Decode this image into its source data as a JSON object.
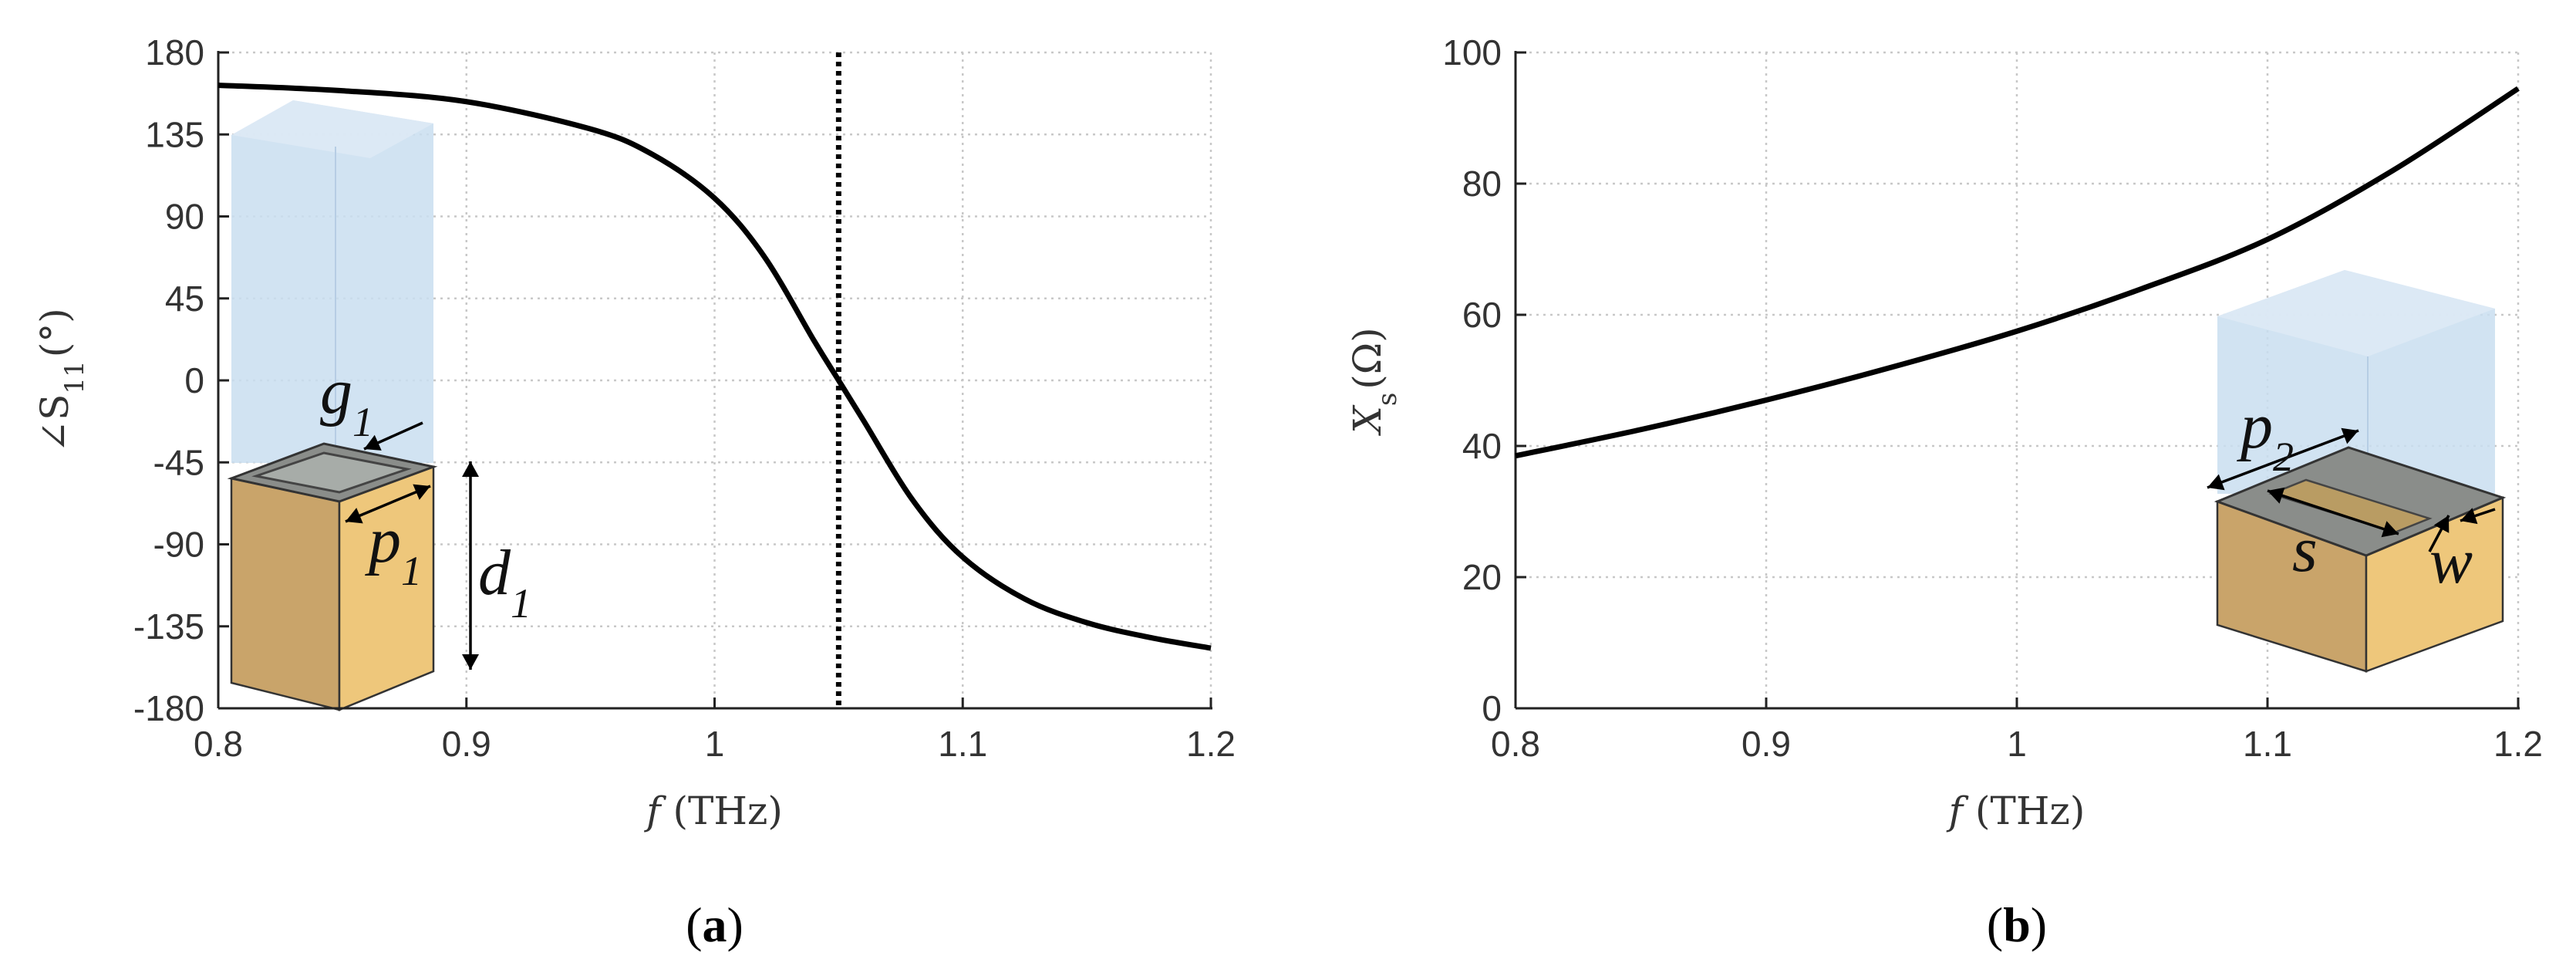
{
  "chart_data": [
    {
      "type": "line",
      "panel_label": "a",
      "xlabel": {
        "var": "f",
        "unit": "(THz)"
      },
      "ylabel": {
        "symbol": "∠S",
        "sub": "11",
        "unit": "(°)"
      },
      "xlim": [
        0.8,
        1.2
      ],
      "ylim": [
        -180,
        180
      ],
      "xticks": [
        0.8,
        0.9,
        1,
        1.1,
        1.2
      ],
      "xtick_labels": [
        "0.8",
        "0.9",
        "1",
        "1.1",
        "1.2"
      ],
      "yticks": [
        180,
        135,
        90,
        45,
        0,
        -45,
        -90,
        -135,
        -180
      ],
      "ytick_labels": [
        "180",
        "135",
        "90",
        "45",
        "0",
        "-45",
        "-90",
        "-135",
        "-180"
      ],
      "grid": true,
      "marker_line": {
        "x": 1.05,
        "style": "dotted"
      },
      "series": [
        {
          "color": "#000000",
          "x": [
            0.8,
            0.85,
            0.9,
            0.95,
            0.975,
            1.0,
            1.02,
            1.04,
            1.05,
            1.06,
            1.08,
            1.1,
            1.125,
            1.15,
            1.175,
            1.2
          ],
          "y": [
            162,
            159,
            153,
            138,
            124,
            100,
            68,
            22,
            0,
            -22,
            -66,
            -97,
            -120,
            -133,
            -141,
            -147
          ]
        }
      ],
      "inset": {
        "labels": [
          "g",
          "p",
          "d"
        ],
        "subscripts": [
          "1",
          "1",
          "1"
        ]
      }
    },
    {
      "type": "line",
      "panel_label": "b",
      "xlabel": {
        "var": "f",
        "unit": "(THz)"
      },
      "ylabel": {
        "symbol": "X",
        "sub": "s",
        "unit": "(Ω)"
      },
      "xlim": [
        0.8,
        1.2
      ],
      "ylim": [
        0,
        100
      ],
      "xticks": [
        0.8,
        0.9,
        1,
        1.1,
        1.2
      ],
      "xtick_labels": [
        "0.8",
        "0.9",
        "1",
        "1.1",
        "1.2"
      ],
      "yticks": [
        0,
        20,
        40,
        60,
        80,
        100
      ],
      "ytick_labels": [
        "0",
        "20",
        "40",
        "60",
        "80",
        "100"
      ],
      "grid": true,
      "series": [
        {
          "color": "#000000",
          "x": [
            0.8,
            0.85,
            0.9,
            0.95,
            1.0,
            1.05,
            1.1,
            1.15,
            1.2
          ],
          "y": [
            38.5,
            42.5,
            47,
            52,
            57.5,
            64,
            71.5,
            82,
            94.5
          ]
        }
      ],
      "inset": {
        "labels": [
          "p",
          "s",
          "w"
        ],
        "subscripts": [
          "2",
          "",
          ""
        ]
      }
    }
  ]
}
